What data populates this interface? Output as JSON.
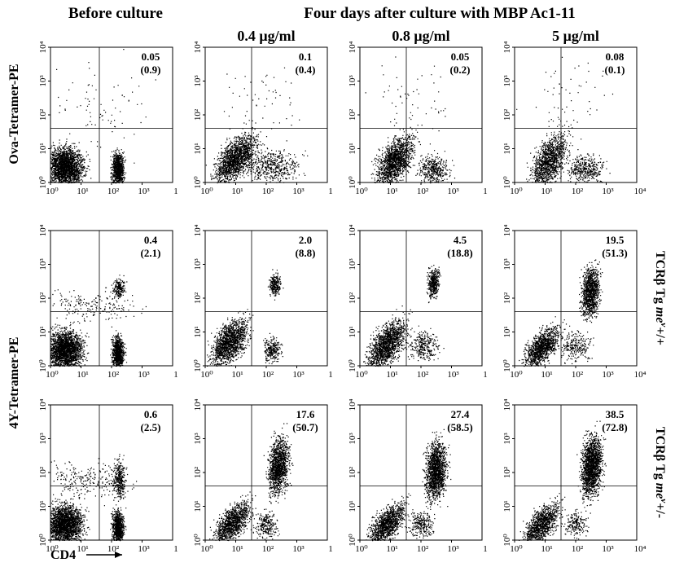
{
  "header": {
    "left": "Before culture",
    "right": "Four days after culture with MBP Ac1-11"
  },
  "column_labels": [
    "0.4 μg/ml",
    "0.8 μg/ml",
    "5 μg/ml"
  ],
  "row_labels": [
    "Ova-Tetramer-PE",
    "4Y-Tetramer-PE"
  ],
  "right_labels": [
    {
      "prefix": "TCRβ Tg ",
      "gene": "me",
      "sup": "v",
      "suffix": "+/+"
    },
    {
      "prefix": "TCRβ Tg ",
      "gene": "me",
      "sup": "v",
      "suffix": "+/-"
    }
  ],
  "x_axis_label": "CD4",
  "axis_ticks": {
    "x": [
      "10⁰",
      "10¹",
      "10²",
      "10³"
    ],
    "x_end_short": "1",
    "x_end_full": "10⁴",
    "y": [
      "10⁰",
      "10¹",
      "10²",
      "10³",
      "10⁴"
    ]
  },
  "panels": [
    [
      {
        "upper_right": "0.05",
        "total": "(0.9)"
      },
      {
        "upper_right": "0.1",
        "total": "(0.4)"
      },
      {
        "upper_right": "0.05",
        "total": "(0.2)"
      },
      {
        "upper_right": "0.08",
        "total": "(0.1)"
      }
    ],
    [
      {
        "upper_right": "0.4",
        "total": "(2.1)"
      },
      {
        "upper_right": "2.0",
        "total": "(8.8)"
      },
      {
        "upper_right": "4.5",
        "total": "(18.8)"
      },
      {
        "upper_right": "19.5",
        "total": "(51.3)"
      }
    ],
    [
      {
        "upper_right": "0.6",
        "total": "(2.5)"
      },
      {
        "upper_right": "17.6",
        "total": "(50.7)"
      },
      {
        "upper_right": "27.4",
        "total": "(58.5)"
      },
      {
        "upper_right": "38.5",
        "total": "(72.8)"
      }
    ]
  ]
}
